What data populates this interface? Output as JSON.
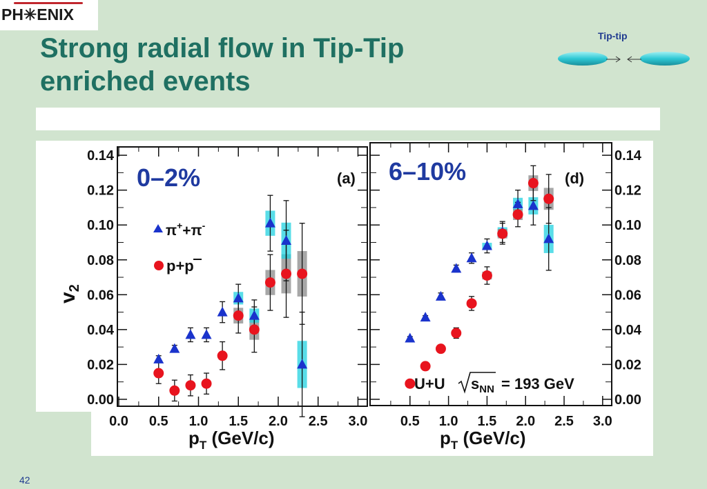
{
  "logo": {
    "text": "PH✳ENIX"
  },
  "title": {
    "line1": "Strong radial flow in Tip-Tip",
    "line2": "enriched events"
  },
  "collision_diagram": {
    "label": "Tip-tip"
  },
  "page_number": "42",
  "colors": {
    "title": "#1f7062",
    "pion": "#1a33cc",
    "proton": "#e8141e",
    "sys_band": "#8a8a8a",
    "background": "#d1e4cf"
  },
  "chart_data": [
    {
      "type": "scatter",
      "panel_label": "(a)",
      "centrality": "0–2%",
      "ylabel": "v",
      "ylabel_sub": "2",
      "xlabel": "p",
      "xlabel_sub": "T",
      "xlabel_unit": " (GeV/c)",
      "xlim": [
        0.0,
        3.1
      ],
      "ylim": [
        -0.002,
        0.144
      ],
      "x_ticks": [
        "0.0",
        "0.5",
        "1.0",
        "1.5",
        "2.0",
        "2.5",
        "3.0"
      ],
      "y_ticks": [
        "0.00",
        "0.02",
        "0.04",
        "0.06",
        "0.08",
        "0.10",
        "0.12",
        "0.14"
      ],
      "legend": [
        {
          "base": "π",
          "sup1": "+",
          "mid": "+π",
          "sup2": "-"
        },
        {
          "text": "p+p"
        }
      ],
      "series": [
        {
          "marker": "triangle",
          "x": [
            0.5,
            0.7,
            0.9,
            1.1,
            1.3,
            1.5,
            1.7,
            1.9,
            2.1,
            2.3
          ],
          "y": [
            0.023,
            0.029,
            0.037,
            0.037,
            0.05,
            0.058,
            0.048,
            0.101,
            0.091,
            0.02
          ],
          "err": [
            0.002,
            0.002,
            0.004,
            0.004,
            0.006,
            0.008,
            0.009,
            0.016,
            0.023,
            0.03
          ]
        },
        {
          "marker": "circle",
          "x": [
            0.5,
            0.7,
            0.9,
            1.1,
            1.3,
            1.5,
            1.7,
            1.9,
            2.1,
            2.3
          ],
          "y": [
            0.015,
            0.005,
            0.008,
            0.009,
            0.025,
            0.048,
            0.04,
            0.067,
            0.072,
            0.072
          ],
          "err": [
            0.006,
            0.006,
            0.006,
            0.006,
            0.008,
            0.01,
            0.013,
            0.016,
            0.025,
            0.029
          ]
        }
      ]
    },
    {
      "type": "scatter",
      "panel_label": "(d)",
      "centrality": "6–10%",
      "annotation": "U+U",
      "annotation_energy": "= 193 GeV",
      "annotation_sqrt": "s",
      "annotation_sqrt_sub": "NN",
      "xlabel": "p",
      "xlabel_sub": "T",
      "xlabel_unit": " (GeV/c)",
      "xlim": [
        0.0,
        3.1
      ],
      "ylim": [
        -0.002,
        0.144
      ],
      "x_ticks": [
        "0.5",
        "1.0",
        "1.5",
        "2.0",
        "2.5",
        "3.0"
      ],
      "y_ticks": [
        "0.00",
        "0.02",
        "0.04",
        "0.06",
        "0.08",
        "0.10",
        "0.12",
        "0.14"
      ],
      "series": [
        {
          "marker": "triangle",
          "x": [
            0.5,
            0.7,
            0.9,
            1.1,
            1.3,
            1.5,
            1.7,
            1.9,
            2.1,
            2.3
          ],
          "y": [
            0.035,
            0.047,
            0.059,
            0.075,
            0.081,
            0.088,
            0.096,
            0.112,
            0.111,
            0.092
          ],
          "err": [
            0.001,
            0.001,
            0.002,
            0.002,
            0.003,
            0.004,
            0.006,
            0.008,
            0.011,
            0.018
          ]
        },
        {
          "marker": "circle",
          "x": [
            0.5,
            0.7,
            0.9,
            1.1,
            1.3,
            1.5,
            1.7,
            1.9,
            2.1,
            2.3
          ],
          "y": [
            0.009,
            0.019,
            0.029,
            0.038,
            0.055,
            0.071,
            0.095,
            0.106,
            0.124,
            0.115
          ],
          "err": [
            0.001,
            0.002,
            0.002,
            0.003,
            0.004,
            0.005,
            0.006,
            0.007,
            0.01,
            0.014
          ]
        }
      ]
    }
  ]
}
